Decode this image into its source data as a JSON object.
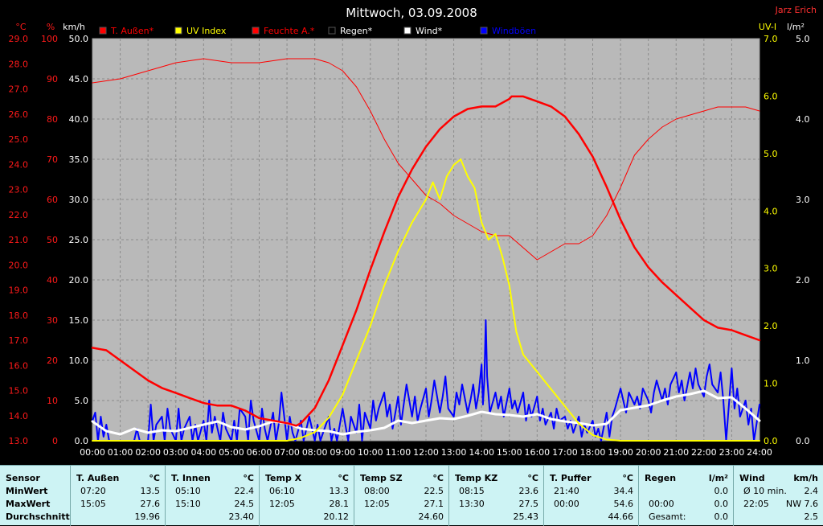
{
  "chart_data": {
    "type": "line",
    "title": "Mittwoch, 03.09.2008",
    "author": "Jarz Erich",
    "x_ticks": [
      "00:00",
      "01:00",
      "02:00",
      "03:00",
      "04:00",
      "05:00",
      "06:00",
      "07:00",
      "08:00",
      "09:00",
      "10:00",
      "11:00",
      "12:00",
      "13:00",
      "14:00",
      "15:00",
      "16:00",
      "17:00",
      "18:00",
      "19:00",
      "20:00",
      "21:00",
      "22:00",
      "23:00",
      "24:00"
    ],
    "axes": {
      "temp": {
        "unit": "°C",
        "ticks": [
          "13.0",
          "14.0",
          "15.0",
          "16.0",
          "17.0",
          "18.0",
          "19.0",
          "20.0",
          "21.0",
          "22.0",
          "23.0",
          "24.0",
          "25.0",
          "26.0",
          "27.0",
          "28.0",
          "29.0"
        ],
        "range": [
          13,
          29
        ]
      },
      "humidity": {
        "unit": "%",
        "ticks": [
          "0",
          "10",
          "20",
          "30",
          "40",
          "50",
          "60",
          "70",
          "80",
          "90",
          "100"
        ],
        "range": [
          0,
          100
        ]
      },
      "wind": {
        "unit": "km/h",
        "ticks": [
          "0.0",
          "5.0",
          "10.0",
          "15.0",
          "20.0",
          "25.0",
          "30.0",
          "35.0",
          "40.0",
          "45.0",
          "50.0"
        ],
        "range": [
          0,
          50
        ]
      },
      "uv": {
        "unit": "UV-I",
        "ticks": [
          "0.0",
          "1.0",
          "2.0",
          "3.0",
          "4.0",
          "5.0",
          "6.0",
          "7.0"
        ],
        "range": [
          0,
          7
        ]
      },
      "rain": {
        "unit": "l/m²",
        "ticks": [
          "0.0",
          "1.0",
          "2.0",
          "3.0",
          "4.0",
          "5.0"
        ],
        "range": [
          0,
          5
        ]
      }
    },
    "legend": [
      {
        "name": "T. Außen*",
        "color": "#ff0000"
      },
      {
        "name": "UV Index",
        "color": "#ffff00"
      },
      {
        "name": "Feuchte A.*",
        "color": "#ff0000"
      },
      {
        "name": "Regen*",
        "color": "#000000"
      },
      {
        "name": "Wind*",
        "color": "#ffffff"
      },
      {
        "name": "Windböen",
        "color": "#0000ff"
      }
    ],
    "series": {
      "temp_outside": {
        "axis": "temp",
        "color": "#ff0000",
        "x": [
          0,
          0.5,
          1,
          1.5,
          2,
          2.5,
          3,
          3.5,
          4,
          4.5,
          5,
          5.5,
          6,
          6.5,
          7,
          7.33,
          7.5,
          8,
          8.5,
          9,
          9.5,
          10,
          10.5,
          11,
          11.5,
          12,
          12.5,
          13,
          13.5,
          14,
          14.5,
          15,
          15.08,
          15.5,
          16,
          16.5,
          17,
          17.5,
          18,
          18.5,
          19,
          19.5,
          20,
          20.5,
          21,
          21.5,
          22,
          22.5,
          23,
          23.5,
          24
        ],
        "y": [
          16.7,
          16.6,
          16.2,
          15.8,
          15.4,
          15.1,
          14.9,
          14.7,
          14.5,
          14.4,
          14.4,
          14.2,
          13.9,
          13.8,
          13.7,
          13.6,
          13.7,
          14.3,
          15.4,
          16.8,
          18.2,
          19.8,
          21.3,
          22.7,
          23.8,
          24.7,
          25.4,
          25.9,
          26.2,
          26.3,
          26.3,
          26.6,
          26.7,
          26.7,
          26.5,
          26.3,
          25.9,
          25.2,
          24.3,
          23.1,
          21.8,
          20.7,
          19.9,
          19.3,
          18.8,
          18.3,
          17.8,
          17.5,
          17.4,
          17.2,
          17.0
        ]
      },
      "humidity": {
        "axis": "humidity",
        "color": "#ff0000",
        "x": [
          0,
          1,
          2,
          3,
          4,
          5,
          6,
          7,
          8,
          8.5,
          9,
          9.5,
          10,
          10.5,
          11,
          11.5,
          12,
          12.5,
          13,
          13.5,
          14,
          14.5,
          15,
          15.5,
          16,
          16.5,
          17,
          17.5,
          18,
          18.5,
          19,
          19.5,
          20,
          20.5,
          21,
          21.5,
          22,
          22.5,
          23,
          23.5,
          24
        ],
        "y": [
          89,
          90,
          92,
          94,
          95,
          94,
          94,
          95,
          95,
          94,
          92,
          88,
          82,
          75,
          69,
          65,
          61,
          59,
          56,
          54,
          52,
          51,
          51,
          48,
          45,
          47,
          49,
          49,
          51,
          56,
          63,
          71,
          75,
          78,
          80,
          81,
          82,
          83,
          83,
          83,
          82
        ]
      },
      "uv_index": {
        "axis": "uv",
        "color": "#ffff00",
        "x": [
          0,
          7,
          7.5,
          8,
          8.5,
          9,
          9.5,
          10,
          10.5,
          11,
          11.5,
          12,
          12.25,
          12.5,
          12.75,
          13,
          13.25,
          13.5,
          13.75,
          14,
          14.25,
          14.5,
          14.75,
          15,
          15.25,
          15.5,
          16,
          16.5,
          17,
          17.5,
          18,
          18.5,
          19,
          24
        ],
        "y": [
          0,
          0,
          0.05,
          0.15,
          0.4,
          0.8,
          1.4,
          2.0,
          2.7,
          3.3,
          3.8,
          4.2,
          4.5,
          4.2,
          4.6,
          4.8,
          4.9,
          4.6,
          4.4,
          3.8,
          3.5,
          3.6,
          3.2,
          2.7,
          1.9,
          1.5,
          1.2,
          0.9,
          0.6,
          0.3,
          0.1,
          0.02,
          0,
          0
        ]
      },
      "wind_avg": {
        "axis": "wind",
        "color": "#ffffff",
        "x": [
          0,
          0.5,
          1,
          1.5,
          2,
          2.5,
          3,
          3.5,
          4,
          4.5,
          5,
          5.5,
          6,
          6.5,
          7,
          7.5,
          8,
          8.5,
          9,
          9.5,
          10,
          10.5,
          11,
          11.5,
          12,
          12.5,
          13,
          13.5,
          14,
          14.5,
          15,
          15.5,
          16,
          16.5,
          17,
          17.5,
          18,
          18.5,
          19,
          19.5,
          20,
          20.5,
          21,
          21.5,
          22,
          22.5,
          23,
          23.5,
          24
        ],
        "y": [
          2.4,
          1.2,
          0.8,
          1.5,
          1.0,
          1.3,
          1.2,
          1.6,
          2.0,
          2.4,
          1.7,
          1.4,
          1.8,
          2.4,
          2.2,
          1.5,
          1.3,
          1.2,
          0.8,
          1.1,
          1.3,
          1.6,
          2.5,
          2.2,
          2.5,
          2.8,
          2.7,
          3.1,
          3.6,
          3.3,
          3.2,
          3.0,
          3.3,
          2.7,
          2.4,
          2.2,
          1.9,
          2.1,
          3.8,
          4.1,
          4.4,
          5.0,
          5.5,
          5.8,
          6.2,
          5.3,
          5.4,
          4.0,
          2.5
        ]
      },
      "wind_gust": {
        "axis": "wind",
        "color": "#0000ff",
        "x": [
          0,
          0.1,
          0.2,
          0.3,
          0.4,
          0.5,
          0.6,
          1.5,
          1.6,
          1.7,
          1.8,
          2,
          2.1,
          2.2,
          2.3,
          2.5,
          2.6,
          2.7,
          2.8,
          3,
          3.1,
          3.2,
          3.3,
          3.5,
          3.6,
          3.7,
          3.8,
          4,
          4.1,
          4.2,
          4.3,
          4.4,
          4.6,
          4.7,
          4.8,
          5,
          5.1,
          5.2,
          5.3,
          5.5,
          5.6,
          5.7,
          5.8,
          6,
          6.1,
          6.2,
          6.3,
          6.5,
          6.6,
          6.7,
          6.8,
          7,
          7.1,
          7.2,
          7.3,
          7.5,
          7.6,
          7.7,
          7.8,
          8,
          8.1,
          8.2,
          8.3,
          8.5,
          8.6,
          8.7,
          8.8,
          9,
          9.1,
          9.2,
          9.3,
          9.5,
          9.6,
          9.7,
          9.8,
          10,
          10.1,
          10.2,
          10.3,
          10.5,
          10.6,
          10.7,
          10.8,
          11,
          11.1,
          11.2,
          11.3,
          11.5,
          11.6,
          11.7,
          11.8,
          12,
          12.1,
          12.2,
          12.3,
          12.5,
          12.6,
          12.7,
          12.8,
          13,
          13.1,
          13.2,
          13.3,
          13.5,
          13.6,
          13.7,
          13.8,
          13.9,
          14,
          14.05,
          14.1,
          14.15,
          14.2,
          14.3,
          14.5,
          14.6,
          14.7,
          14.8,
          15,
          15.1,
          15.2,
          15.3,
          15.5,
          15.6,
          15.7,
          15.8,
          16,
          16.1,
          16.2,
          16.3,
          16.5,
          16.6,
          16.7,
          16.8,
          17,
          17.1,
          17.2,
          17.3,
          17.5,
          17.6,
          17.7,
          17.8,
          18,
          18.1,
          18.2,
          18.3,
          18.5,
          18.6,
          18.7,
          18.8,
          19,
          19.1,
          19.2,
          19.3,
          19.5,
          19.6,
          19.7,
          19.8,
          20,
          20.1,
          20.2,
          20.3,
          20.5,
          20.6,
          20.7,
          20.8,
          21,
          21.1,
          21.2,
          21.3,
          21.5,
          21.6,
          21.7,
          21.8,
          22,
          22.1,
          22.2,
          22.3,
          22.5,
          22.6,
          22.7,
          22.8,
          23,
          23.1,
          23.2,
          23.3,
          23.5,
          23.6,
          23.7,
          23.8,
          24
        ],
        "y": [
          2.5,
          3.5,
          0,
          3.0,
          0.5,
          2.0,
          0,
          0,
          1.5,
          0,
          0,
          0,
          4.5,
          0,
          2.0,
          3.0,
          0,
          4.0,
          1.5,
          0,
          4.0,
          0,
          1.5,
          3.0,
          0,
          2.0,
          0,
          2.5,
          0,
          5.0,
          1.0,
          3.0,
          0,
          3.5,
          1.5,
          0,
          2.5,
          0,
          4.0,
          3.0,
          0,
          5.0,
          2.5,
          0,
          4.0,
          1.5,
          0,
          3.5,
          0,
          2.0,
          6.0,
          0,
          3.0,
          1.0,
          0,
          2.5,
          0,
          1.5,
          3.0,
          0,
          2.0,
          0,
          1.0,
          3.0,
          0,
          1.5,
          0,
          4.0,
          2.0,
          0,
          3.0,
          1.0,
          4.5,
          0,
          3.5,
          1.5,
          5.0,
          2.5,
          4.0,
          6.0,
          3.0,
          4.5,
          1.5,
          5.5,
          2.0,
          4.5,
          7.0,
          3.0,
          5.5,
          2.5,
          4.0,
          6.5,
          3.0,
          5.0,
          7.5,
          3.5,
          5.5,
          8.0,
          4.0,
          3.0,
          6.0,
          4.5,
          7.0,
          3.5,
          5.0,
          7.0,
          4.0,
          6.0,
          9.5,
          4.5,
          7.5,
          15.0,
          8.0,
          3.5,
          6.0,
          4.0,
          5.5,
          3.0,
          6.5,
          4.0,
          5.0,
          3.5,
          6.0,
          2.5,
          4.5,
          3.0,
          5.5,
          2.5,
          4.0,
          2.0,
          3.5,
          1.5,
          4.0,
          2.5,
          3.0,
          1.5,
          2.5,
          1.0,
          3.0,
          0.5,
          2.0,
          1.0,
          2.5,
          0.5,
          1.5,
          0,
          3.5,
          0.5,
          3.0,
          4.0,
          6.5,
          5.0,
          3.5,
          6.0,
          4.5,
          5.5,
          4.0,
          6.5,
          5.0,
          3.5,
          6.0,
          7.5,
          5.0,
          6.5,
          4.5,
          7.0,
          8.5,
          6.0,
          7.5,
          5.0,
          8.5,
          6.5,
          9.0,
          7.0,
          5.5,
          8.0,
          9.5,
          7.0,
          6.0,
          8.5,
          5.0,
          0,
          9.0,
          4.0,
          6.5,
          3.0,
          5.0,
          2.0,
          4.0,
          0,
          4.5
        ]
      }
    }
  },
  "stats": {
    "columns": [
      {
        "header": "Sensor",
        "unit": "",
        "rows": [
          [
            "MinWert",
            ""
          ],
          [
            "MaxWert",
            ""
          ],
          [
            "Durchschnitt",
            ""
          ]
        ]
      },
      {
        "header": "T. Außen",
        "unit": "°C",
        "rows": [
          [
            "07:20",
            "13.5"
          ],
          [
            "15:05",
            "27.6"
          ],
          [
            "",
            "19.96"
          ]
        ]
      },
      {
        "header": "T. Innen",
        "unit": "°C",
        "rows": [
          [
            "05:10",
            "22.4"
          ],
          [
            "15:10",
            "24.5"
          ],
          [
            "",
            "23.40"
          ]
        ]
      },
      {
        "header": "Temp X",
        "unit": "°C",
        "rows": [
          [
            "06:10",
            "13.3"
          ],
          [
            "12:05",
            "28.1"
          ],
          [
            "",
            "20.12"
          ]
        ]
      },
      {
        "header": "Temp SZ",
        "unit": "°C",
        "rows": [
          [
            "08:00",
            "22.5"
          ],
          [
            "12:05",
            "27.1"
          ],
          [
            "",
            "24.60"
          ]
        ]
      },
      {
        "header": "Temp KZ",
        "unit": "°C",
        "rows": [
          [
            "08:15",
            "23.6"
          ],
          [
            "13:30",
            "27.5"
          ],
          [
            "",
            "25.43"
          ]
        ]
      },
      {
        "header": "T. Puffer",
        "unit": "°C",
        "rows": [
          [
            "21:40",
            "34.4"
          ],
          [
            "00:00",
            "54.6"
          ],
          [
            "",
            "44.66"
          ]
        ]
      },
      {
        "header": "Regen",
        "unit": "l/m²",
        "rows": [
          [
            "",
            "0.0"
          ],
          [
            "00:00",
            "0.0"
          ],
          [
            "Gesamt:",
            "0.0"
          ]
        ]
      },
      {
        "header": "Wind",
        "unit": "km/h",
        "rows": [
          [
            "Ø 10 min.",
            "2.4"
          ],
          [
            "22:05",
            "NW 7.6"
          ],
          [
            "",
            "2.5"
          ]
        ]
      }
    ]
  }
}
